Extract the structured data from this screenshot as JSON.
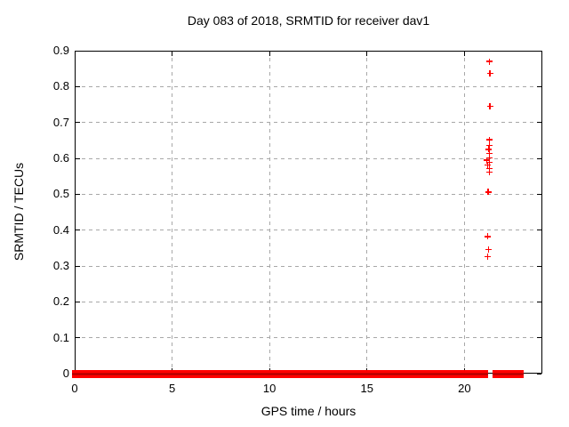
{
  "figure": {
    "title": "Day 083 of 2018, SRMTID for receiver dav1",
    "xlabel": "GPS time / hours",
    "ylabel": "SRMTID / TECUs"
  },
  "colors": {
    "marker": "#ff0000",
    "band_core": "#aa0000",
    "grid": "#a8a8a8",
    "axis": "#000000",
    "background": "#ffffff"
  },
  "chart_data": {
    "type": "scatter",
    "title": "Day 083 of 2018, SRMTID for receiver dav1",
    "xlabel": "GPS time / hours",
    "ylabel": "SRMTID / TECUs",
    "xlim": [
      0,
      24
    ],
    "ylim": [
      0,
      0.9
    ],
    "xticks": {
      "values": [
        0,
        5,
        10,
        15,
        20
      ],
      "labels": [
        "0",
        "5",
        "10",
        "15",
        "20"
      ]
    },
    "yticks": {
      "values": [
        0,
        0.1,
        0.2,
        0.3,
        0.4,
        0.5,
        0.6,
        0.7,
        0.8,
        0.9
      ],
      "labels": [
        "0",
        "0.1",
        "0.2",
        "0.3",
        "0.4",
        "0.5",
        "0.6",
        "0.7",
        "0.8",
        "0.9"
      ]
    },
    "grid": true,
    "legend": "none",
    "marker": "plus",
    "series": [
      {
        "name": "SRMTID baseline (dense points at y = 0)",
        "render": "band",
        "y": 0,
        "x_segments": [
          [
            0.0,
            21.2
          ],
          [
            21.45,
            22.9
          ]
        ]
      },
      {
        "name": "SRMTID outliers near 21.2-21.3 h",
        "render": "points",
        "points": [
          {
            "x": 21.28,
            "y": 0.87
          },
          {
            "x": 21.31,
            "y": 0.837
          },
          {
            "x": 21.31,
            "y": 0.745
          },
          {
            "x": 21.27,
            "y": 0.652
          },
          {
            "x": 21.27,
            "y": 0.636
          },
          {
            "x": 21.24,
            "y": 0.625
          },
          {
            "x": 21.27,
            "y": 0.613
          },
          {
            "x": 21.27,
            "y": 0.601
          },
          {
            "x": 21.15,
            "y": 0.595
          },
          {
            "x": 21.27,
            "y": 0.589
          },
          {
            "x": 21.18,
            "y": 0.582
          },
          {
            "x": 21.27,
            "y": 0.571
          },
          {
            "x": 21.27,
            "y": 0.562
          },
          {
            "x": 21.22,
            "y": 0.506
          },
          {
            "x": 21.19,
            "y": 0.382
          },
          {
            "x": 21.24,
            "y": 0.346
          },
          {
            "x": 21.19,
            "y": 0.327
          }
        ]
      }
    ]
  }
}
